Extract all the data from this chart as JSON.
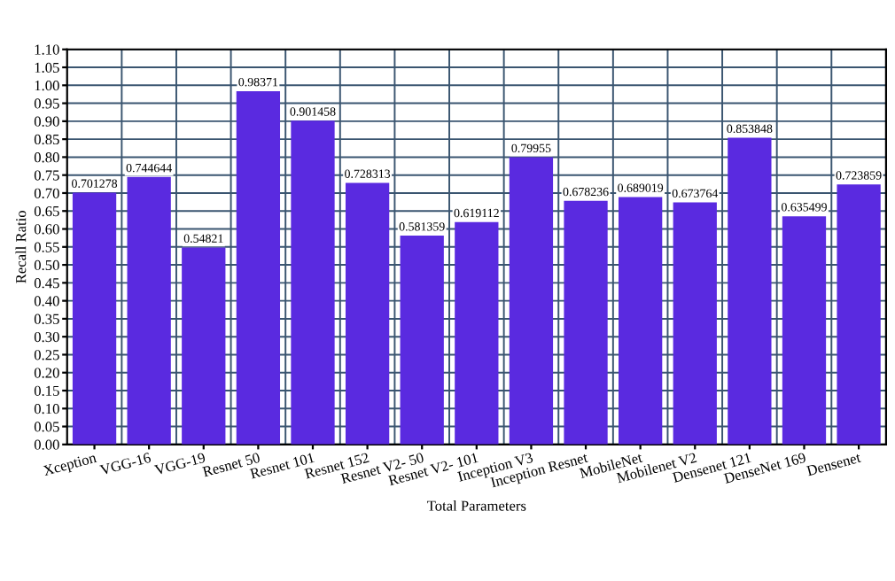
{
  "chart_data": {
    "type": "bar",
    "xlabel": "Total Parameters",
    "ylabel": "Recall Ratio",
    "categories": [
      "Xception",
      "VGG-16",
      "VGG-19",
      "Resnet 50",
      "Resnet 101",
      "Resnet 152",
      "Resnet V2- 50",
      "Resnet V2- 101",
      "Inception V3",
      "Inception Resnet",
      "MobileNet",
      "Mobilenet V2",
      "Densenet 121",
      "DenseNet 169",
      "Densenet"
    ],
    "values": [
      0.701278,
      0.744644,
      0.54821,
      0.98371,
      0.901458,
      0.728313,
      0.581359,
      0.619112,
      0.79955,
      0.678236,
      0.689019,
      0.673764,
      0.853848,
      0.635499,
      0.723859
    ],
    "color": "#5a2ae0",
    "data_labels": true,
    "grid": true,
    "ylim": [
      0,
      1.1
    ],
    "yticks": [
      {
        "value": 0,
        "label": "0.00"
      },
      {
        "value": 0.05,
        "label": "0.05"
      },
      {
        "value": 0.1,
        "label": "0.10"
      },
      {
        "value": 0.15,
        "label": "0.15"
      },
      {
        "value": 0.2,
        "label": "0.20"
      },
      {
        "value": 0.25,
        "label": "0.25"
      },
      {
        "value": 0.3,
        "label": "0.30"
      },
      {
        "value": 0.35,
        "label": "0.35"
      },
      {
        "value": 0.4,
        "label": "0.40"
      },
      {
        "value": 0.45,
        "label": "0.45"
      },
      {
        "value": 0.5,
        "label": "0.50"
      },
      {
        "value": 0.55,
        "label": "0.55"
      },
      {
        "value": 0.6,
        "label": "0.60"
      },
      {
        "value": 0.65,
        "label": "0.65"
      },
      {
        "value": 0.7,
        "label": "0.70"
      },
      {
        "value": 0.75,
        "label": "0.75"
      },
      {
        "value": 0.8,
        "label": "0.80"
      },
      {
        "value": 0.85,
        "label": "0.85"
      },
      {
        "value": 0.9,
        "label": "0.90"
      },
      {
        "value": 0.95,
        "label": "0.95"
      },
      {
        "value": 1.0,
        "label": "1.00"
      },
      {
        "value": 1.05,
        "label": "1.05"
      },
      {
        "value": 1.1,
        "label": "1.10"
      }
    ]
  }
}
